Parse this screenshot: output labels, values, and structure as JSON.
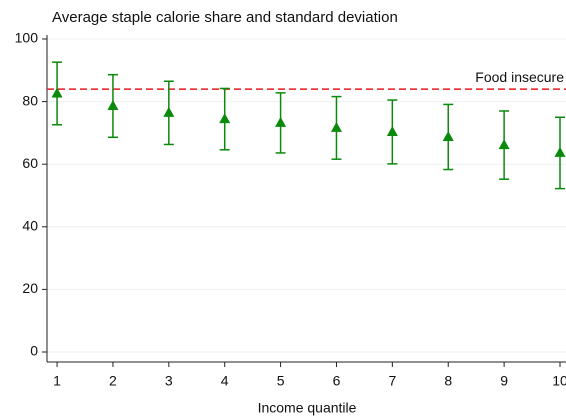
{
  "chart_data": {
    "type": "scatter",
    "title": "Average staple calorie share and standard deviation",
    "x_label": "Income quantile",
    "x": [
      1,
      2,
      3,
      4,
      5,
      6,
      7,
      8,
      9,
      10
    ],
    "series": [
      {
        "color": "#0a8a0a",
        "values": [
          82.6,
          78.6,
          76.4,
          74.4,
          73.2,
          71.6,
          70.3,
          68.7,
          66.1,
          63.6
        ],
        "errors": [
          10,
          10,
          10.1,
          9.8,
          9.6,
          10,
          10.2,
          10.4,
          10.9,
          11.4
        ]
      }
    ],
    "reference_line": {
      "value": 84,
      "label": "Food insecure",
      "color": "#e8191f"
    },
    "xlim": [
      0.82,
      10
    ],
    "xticks": [
      1,
      2,
      3,
      4,
      5,
      6,
      7,
      8,
      9,
      10
    ],
    "ylim": [
      0,
      100
    ],
    "yticks": [
      0,
      20,
      40,
      60,
      80,
      100
    ],
    "grid": true
  }
}
